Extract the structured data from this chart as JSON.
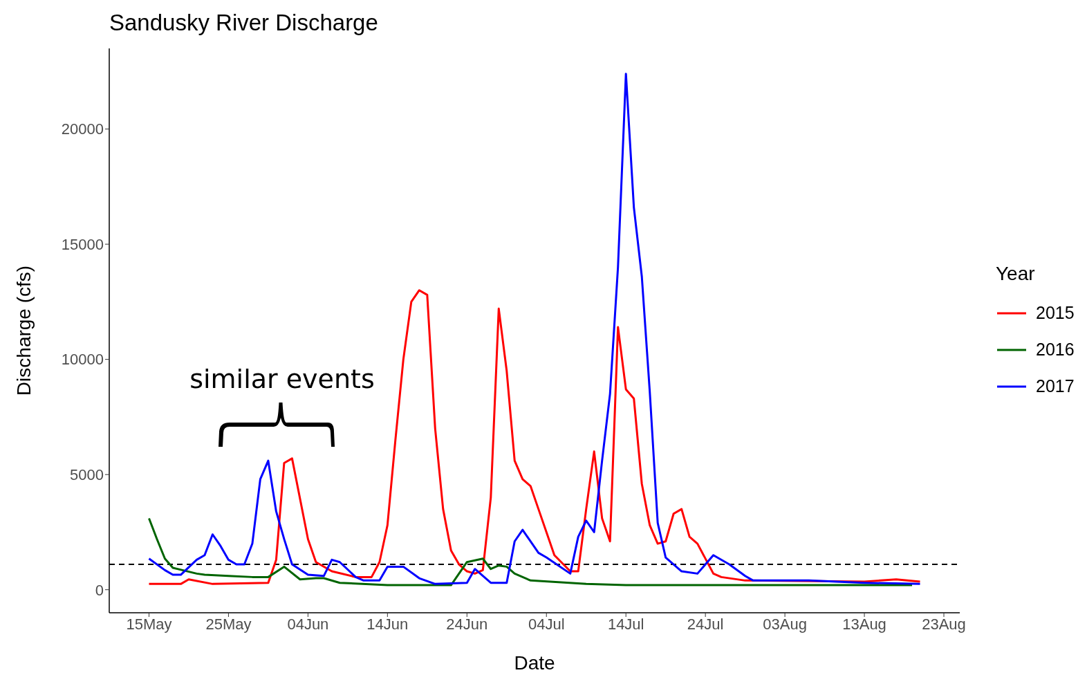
{
  "chart_data": {
    "type": "line",
    "title": "Sandusky River Discharge",
    "xlabel": "Date",
    "ylabel": "Discharge (cfs)",
    "legend_title": "Year",
    "legend": "right",
    "grid": false,
    "marker": "none",
    "line_style": "solid",
    "annotations": [
      "similar events"
    ],
    "xlim": [
      "--05-10",
      "--08-25"
    ],
    "xticks": [
      {
        "value": "--05-15",
        "label": "15May"
      },
      {
        "value": "--05-25",
        "label": "25May"
      },
      {
        "value": "--06-04",
        "label": "04Jun"
      },
      {
        "value": "--06-14",
        "label": "14Jun"
      },
      {
        "value": "--06-24",
        "label": "24Jun"
      },
      {
        "value": "--07-04",
        "label": "04Jul"
      },
      {
        "value": "--07-14",
        "label": "14Jul"
      },
      {
        "value": "--07-24",
        "label": "24Jul"
      },
      {
        "value": "--08-03",
        "label": "03Aug"
      },
      {
        "value": "--08-13",
        "label": "13Aug"
      },
      {
        "value": "--08-23",
        "label": "23Aug"
      }
    ],
    "ylim": [
      -1000,
      23500
    ],
    "yticks": [
      0,
      5000,
      10000,
      15000,
      20000
    ],
    "ref_lines": [
      {
        "axis": "y",
        "value": 1100,
        "color": "#000000",
        "line_style": "dashed"
      }
    ],
    "series": [
      {
        "name": "2015",
        "color": "#ff0000",
        "x": [
          "--05-15",
          "--05-19",
          "--05-20",
          "--05-23",
          "--05-30",
          "--05-31",
          "--06-01",
          "--06-02",
          "--06-04",
          "--06-05",
          "--06-07",
          "--06-10",
          "--06-12",
          "--06-13",
          "--06-14",
          "--06-15",
          "--06-16",
          "--06-17",
          "--06-18",
          "--06-19",
          "--06-20",
          "--06-21",
          "--06-22",
          "--06-23",
          "--06-24",
          "--06-25",
          "--06-26",
          "--06-27",
          "--06-28",
          "--06-29",
          "--06-30",
          "--07-01",
          "--07-02",
          "--07-03",
          "--07-05",
          "--07-07",
          "--07-08",
          "--07-09",
          "--07-10",
          "--07-11",
          "--07-12",
          "--07-13",
          "--07-14",
          "--07-15",
          "--07-16",
          "--07-17",
          "--07-18",
          "--07-19",
          "--07-20",
          "--07-21",
          "--07-22",
          "--07-23",
          "--07-25",
          "--07-26",
          "--07-29",
          "--08-13",
          "--08-17",
          "--08-20"
        ],
        "values": [
          250,
          250,
          450,
          250,
          300,
          1300,
          5500,
          5700,
          2200,
          1200,
          800,
          550,
          550,
          1200,
          2800,
          6500,
          10000,
          12500,
          13000,
          12800,
          7000,
          3500,
          1700,
          1100,
          800,
          700,
          850,
          4000,
          12200,
          9500,
          5600,
          4800,
          4500,
          3500,
          1500,
          800,
          800,
          3500,
          6000,
          3100,
          2100,
          11400,
          8700,
          8300,
          4600,
          2800,
          2000,
          2100,
          3300,
          3500,
          2300,
          2000,
          700,
          550,
          400,
          350,
          450,
          350
        ]
      },
      {
        "name": "2016",
        "color": "#006400",
        "x": [
          "--05-15",
          "--05-16",
          "--05-17",
          "--05-18",
          "--05-21",
          "--05-22",
          "--05-25",
          "--05-28",
          "--05-30",
          "--06-01",
          "--06-03",
          "--06-05",
          "--06-06",
          "--06-08",
          "--06-14",
          "--06-22",
          "--06-24",
          "--06-26",
          "--06-27",
          "--06-28",
          "--06-29",
          "--06-30",
          "--07-02",
          "--07-09",
          "--07-14",
          "--08-19"
        ],
        "values": [
          3100,
          2200,
          1350,
          950,
          700,
          650,
          600,
          550,
          550,
          1000,
          450,
          500,
          500,
          300,
          200,
          200,
          1200,
          1350,
          900,
          1050,
          1000,
          700,
          400,
          250,
          200,
          200
        ]
      },
      {
        "name": "2017",
        "color": "#0000ff",
        "x": [
          "--05-15",
          "--05-17",
          "--05-18",
          "--05-19",
          "--05-21",
          "--05-22",
          "--05-23",
          "--05-24",
          "--05-25",
          "--05-26",
          "--05-27",
          "--05-28",
          "--05-29",
          "--05-30",
          "--05-31",
          "--06-01",
          "--06-02",
          "--06-04",
          "--06-06",
          "--06-07",
          "--06-08",
          "--06-10",
          "--06-11",
          "--06-13",
          "--06-14",
          "--06-16",
          "--06-18",
          "--06-20",
          "--06-24",
          "--06-25",
          "--06-27",
          "--06-29",
          "--06-30",
          "--07-01",
          "--07-03",
          "--07-04",
          "--07-07",
          "--07-08",
          "--07-09",
          "--07-10",
          "--07-11",
          "--07-12",
          "--07-13",
          "--07-14",
          "--07-15",
          "--07-16",
          "--07-17",
          "--07-18",
          "--07-19",
          "--07-21",
          "--07-23",
          "--07-25",
          "--07-27",
          "--07-29",
          "--07-30",
          "--08-06",
          "--08-13",
          "--08-20"
        ],
        "values": [
          1350,
          850,
          650,
          650,
          1300,
          1500,
          2400,
          1900,
          1300,
          1100,
          1100,
          2000,
          4800,
          5600,
          3400,
          2200,
          1100,
          650,
          600,
          1300,
          1200,
          550,
          400,
          400,
          1000,
          1000,
          500,
          250,
          300,
          900,
          300,
          300,
          2100,
          2600,
          1600,
          1400,
          700,
          2300,
          3000,
          2500,
          5600,
          8500,
          14000,
          22400,
          16600,
          13600,
          8600,
          2900,
          1400,
          800,
          700,
          1500,
          1100,
          600,
          400,
          400,
          300,
          250
        ]
      }
    ]
  }
}
